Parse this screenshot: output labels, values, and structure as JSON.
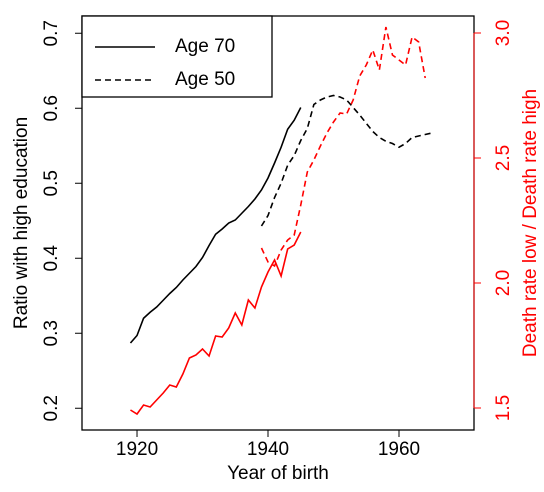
{
  "chart_data": {
    "type": "line",
    "x_label": "Year of birth",
    "y_label": "Ratio with high education",
    "y2_label": "Death rate low / Death rate high",
    "y2_color": "#ff0000",
    "xlim": [
      1911.6,
      1971.45
    ],
    "xticks": [
      1920,
      1940,
      1960
    ],
    "ylim": [
      0.171,
      0.723
    ],
    "yticks": [
      0.2,
      0.3,
      0.4,
      0.5,
      0.6,
      0.7
    ],
    "y2lim": [
      1.412,
      3.068
    ],
    "y2ticks": [
      1.5,
      {
        "value": 2,
        "label": "2.0"
      },
      2.5,
      {
        "value": 3,
        "label": "3.0"
      }
    ],
    "legend": "top-left",
    "series": [
      {
        "name": "Age 70",
        "color": "#000000",
        "linestyle": "solid",
        "x": [
          1919,
          1920,
          1921,
          1922,
          1923,
          1924,
          1925,
          1926,
          1927,
          1928,
          1929,
          1930,
          1931,
          1932,
          1933,
          1934,
          1935,
          1936,
          1937,
          1938,
          1939,
          1940,
          1941,
          1942,
          1943,
          1944,
          1945
        ],
        "values": [
          0.287,
          0.297,
          0.32,
          0.328,
          0.335,
          0.344,
          0.353,
          0.361,
          0.371,
          0.38,
          0.389,
          0.401,
          0.417,
          0.432,
          0.439,
          0.447,
          0.451,
          0.46,
          0.469,
          0.479,
          0.491,
          0.507,
          0.527,
          0.548,
          0.572,
          0.584,
          0.601
        ]
      },
      {
        "name": "Age 50",
        "color": "#000000",
        "linestyle": "dashed",
        "x": [
          1939,
          1940,
          1941,
          1942,
          1943,
          1944,
          1945,
          1946,
          1947,
          1948,
          1949,
          1950,
          1951,
          1952,
          1953,
          1954,
          1955,
          1956,
          1957,
          1958,
          1959,
          1960,
          1961,
          1962,
          1963,
          1964,
          1965
        ],
        "values": [
          0.443,
          0.457,
          0.481,
          0.5,
          0.524,
          0.537,
          0.557,
          0.573,
          0.605,
          0.611,
          0.615,
          0.617,
          0.615,
          0.611,
          0.601,
          0.591,
          0.58,
          0.569,
          0.561,
          0.556,
          0.553,
          0.548,
          0.553,
          0.561,
          0.563,
          0.565,
          0.567
        ]
      },
      {
        "color": "#ff0000",
        "linestyle": "solid",
        "axis": "y2",
        "x": [
          1919,
          1920,
          1921,
          1922,
          1923,
          1924,
          1925,
          1926,
          1927,
          1928,
          1929,
          1930,
          1931,
          1932,
          1933,
          1934,
          1935,
          1936,
          1937,
          1938,
          1939,
          1940,
          1941,
          1942,
          1943,
          1944,
          1945
        ],
        "values": [
          1.492,
          1.476,
          1.512,
          1.504,
          1.532,
          1.56,
          1.592,
          1.584,
          1.636,
          1.7,
          1.712,
          1.736,
          1.708,
          1.788,
          1.784,
          1.82,
          1.88,
          1.832,
          1.932,
          1.9,
          1.984,
          2.044,
          2.092,
          2.028,
          2.136,
          2.152,
          2.204
        ]
      },
      {
        "color": "#ff0000",
        "linestyle": "dashed",
        "axis": "y2",
        "x": [
          1939,
          1940,
          1941,
          1942,
          1943,
          1944,
          1945,
          1946,
          1947,
          1948,
          1949,
          1950,
          1951,
          1952,
          1953,
          1954,
          1955,
          1956,
          1957,
          1958,
          1959,
          1960,
          1961,
          1962,
          1963,
          1964
        ],
        "values": [
          2.14,
          2.084,
          2.068,
          2.132,
          2.172,
          2.192,
          2.312,
          2.444,
          2.492,
          2.548,
          2.6,
          2.644,
          2.68,
          2.676,
          2.732,
          2.828,
          2.872,
          2.932,
          2.852,
          3.024,
          2.912,
          2.892,
          2.872,
          2.984,
          2.964,
          2.82
        ]
      }
    ]
  }
}
